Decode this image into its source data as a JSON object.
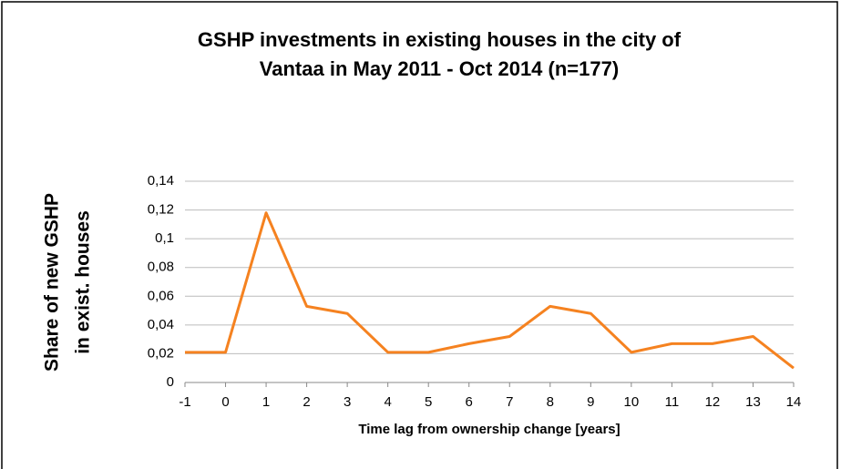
{
  "chart_data": {
    "type": "line",
    "title": [
      "GSHP investments in existing houses in the city of",
      "Vantaa in May 2011 - Oct 2014 (n=177)"
    ],
    "x_label": "Time lag from ownership change [years]",
    "y_label": [
      "Share  of new GSHP",
      "in exist.  houses"
    ],
    "x": [
      -1,
      0,
      1,
      2,
      3,
      4,
      5,
      6,
      7,
      8,
      9,
      10,
      11,
      12,
      13,
      14
    ],
    "values": [
      0.021,
      0.021,
      0.118,
      0.053,
      0.048,
      0.021,
      0.021,
      0.027,
      0.032,
      0.053,
      0.048,
      0.021,
      0.027,
      0.027,
      0.032,
      0.01
    ],
    "color": "#f58220",
    "xlim": [
      -1,
      14
    ],
    "xticks": [
      -1,
      0,
      1,
      2,
      3,
      4,
      5,
      6,
      7,
      8,
      9,
      10,
      11,
      12,
      13,
      14
    ],
    "ylim": [
      0,
      0.14
    ],
    "yticks": [
      0,
      {
        "value": 0.02,
        "label": "0,02"
      },
      {
        "value": 0.04,
        "label": "0,04"
      },
      {
        "value": 0.06,
        "label": "0,06"
      },
      {
        "value": 0.08,
        "label": "0,08"
      },
      {
        "value": 0.1,
        "label": "0,1"
      },
      {
        "value": 0.12,
        "label": "0,12"
      },
      {
        "value": 0.14,
        "label": "0,14"
      }
    ],
    "grid": true
  }
}
